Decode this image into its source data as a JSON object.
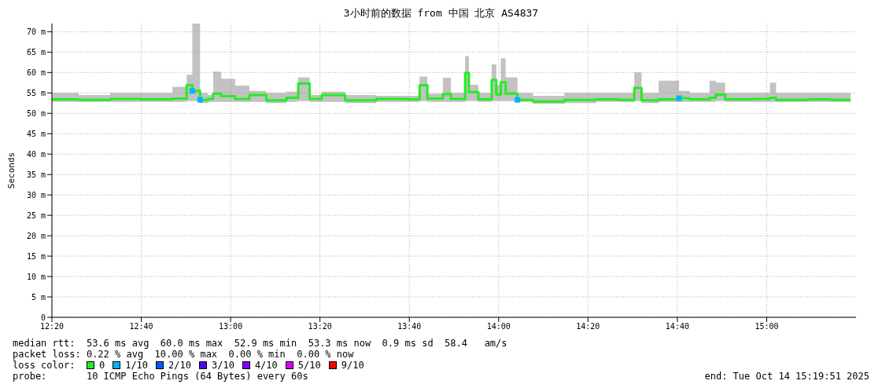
{
  "chart_data": {
    "type": "step",
    "title": "3小时前的数据 from 中国 北京 AS4837",
    "ylabel": "Seconds",
    "legend_title": "loss color:",
    "x": [
      12.3333,
      12.433,
      12.55,
      12.667,
      12.783,
      12.836,
      12.857,
      12.886,
      12.915,
      12.935,
      12.965,
      13.017,
      13.07,
      13.133,
      13.208,
      13.252,
      13.295,
      13.34,
      13.427,
      13.543,
      13.66,
      13.705,
      13.734,
      13.792,
      13.822,
      13.875,
      13.889,
      13.924,
      13.974,
      13.991,
      14.008,
      14.026,
      14.07,
      14.128,
      14.245,
      14.363,
      14.45,
      14.506,
      14.533,
      14.597,
      14.673,
      14.713,
      14.787,
      14.81,
      14.845,
      14.947,
      15.012,
      15.035,
      15.152,
      15.24,
      15.313
    ],
    "series": [
      {
        "name": "0",
        "color": "#22ee22",
        "values": [
          53.4,
          53.3,
          53.5,
          53.4,
          53.6,
          56.9,
          55.5,
          53.3,
          53.5,
          54.8,
          54.2,
          53.5,
          54.5,
          53.2,
          53.8,
          57.3,
          53.5,
          54.5,
          53.2,
          53.5,
          53.4,
          56.9,
          53.6,
          54.7,
          53.5,
          59.9,
          55.2,
          53.4,
          58.2,
          54.6,
          57.6,
          54.8,
          53.3,
          52.9,
          53.3,
          53.4,
          53.3,
          56.2,
          53.2,
          53.4,
          53.7,
          53.4,
          53.8,
          54.6,
          53.4,
          53.5,
          53.8,
          53.3,
          53.4,
          53.3,
          53.3
        ],
        "lower": [
          52.8,
          52.8,
          52.8,
          52.8,
          52.8,
          53,
          53,
          52.5,
          52.8,
          52.8,
          52.8,
          52.8,
          52.8,
          52.5,
          52.8,
          53,
          52.8,
          52.8,
          52.5,
          52.8,
          52.8,
          53,
          52.8,
          52.8,
          52.8,
          53,
          53,
          52.8,
          53,
          53,
          53,
          53,
          52.8,
          52.3,
          52.5,
          52.8,
          52.8,
          53,
          52.5,
          52.8,
          52.8,
          52.8,
          52.8,
          53,
          52.8,
          52.8,
          52.8,
          52.8,
          52.8,
          52.8,
          52.8
        ],
        "upper": [
          55,
          54.5,
          55,
          55,
          56.5,
          59.5,
          72,
          55,
          54.5,
          60.2,
          58.5,
          56.8,
          55.5,
          55,
          55.3,
          58.8,
          54.5,
          55.3,
          54.5,
          54.3,
          54.3,
          59,
          54.8,
          58.7,
          55,
          64,
          57,
          55,
          62,
          57,
          63.5,
          58.8,
          55,
          54.3,
          55,
          55,
          55,
          60,
          55,
          58,
          55.5,
          55,
          58,
          57.5,
          55,
          55,
          57.5,
          55,
          55,
          55,
          54.5
        ]
      },
      {
        "name": "1/10",
        "type": "scatter",
        "marker": "square",
        "color": "#00b4ff",
        "values": [
          null,
          null,
          null,
          null,
          null,
          null,
          55.5,
          53.3,
          null,
          null,
          null,
          null,
          null,
          null,
          null,
          null,
          null,
          null,
          null,
          null,
          null,
          null,
          null,
          null,
          null,
          null,
          null,
          null,
          null,
          null,
          null,
          null,
          53.3,
          null,
          null,
          null,
          null,
          null,
          null,
          null,
          53.7,
          null,
          null,
          null,
          null,
          null,
          null,
          null,
          null,
          null,
          null
        ]
      },
      {
        "name": "2/10",
        "type": "scatter",
        "color": "#0059ff",
        "values": [
          null,
          null,
          null,
          null,
          null,
          null,
          null,
          null,
          null,
          null,
          null,
          null,
          null,
          null,
          null,
          null,
          null,
          null,
          null,
          null,
          null,
          null,
          null,
          null,
          null,
          null,
          null,
          null,
          null,
          null,
          null,
          null,
          null,
          null,
          null,
          null,
          null,
          null,
          null,
          null,
          null,
          null,
          null,
          null,
          null,
          null,
          null,
          null,
          null,
          null,
          null
        ]
      },
      {
        "name": "3/10",
        "type": "scatter",
        "color": "#5500ff",
        "values": [
          null,
          null,
          null,
          null,
          null,
          null,
          null,
          null,
          null,
          null,
          null,
          null,
          null,
          null,
          null,
          null,
          null,
          null,
          null,
          null,
          null,
          null,
          null,
          null,
          null,
          null,
          null,
          null,
          null,
          null,
          null,
          null,
          null,
          null,
          null,
          null,
          null,
          null,
          null,
          null,
          null,
          null,
          null,
          null,
          null,
          null,
          null,
          null,
          null,
          null,
          null
        ]
      },
      {
        "name": "4/10",
        "type": "scatter",
        "color": "#7e00ff",
        "values": [
          null,
          null,
          null,
          null,
          null,
          null,
          null,
          null,
          null,
          null,
          null,
          null,
          null,
          null,
          null,
          null,
          null,
          null,
          null,
          null,
          null,
          null,
          null,
          null,
          null,
          null,
          null,
          null,
          null,
          null,
          null,
          null,
          null,
          null,
          null,
          null,
          null,
          null,
          null,
          null,
          null,
          null,
          null,
          null,
          null,
          null,
          null,
          null,
          null,
          null,
          null
        ]
      },
      {
        "name": "5/10",
        "type": "scatter",
        "color": "#dd00ff",
        "values": [
          null,
          null,
          null,
          null,
          null,
          null,
          null,
          null,
          null,
          null,
          null,
          null,
          null,
          null,
          null,
          null,
          null,
          null,
          null,
          null,
          null,
          null,
          null,
          null,
          null,
          null,
          null,
          null,
          null,
          null,
          null,
          null,
          null,
          null,
          null,
          null,
          null,
          null,
          null,
          null,
          null,
          null,
          null,
          null,
          null,
          null,
          null,
          null,
          null,
          null,
          null
        ]
      },
      {
        "name": "9/10",
        "type": "scatter",
        "color": "#ff0000",
        "values": [
          null,
          null,
          null,
          null,
          null,
          null,
          null,
          null,
          null,
          null,
          null,
          null,
          null,
          null,
          null,
          null,
          null,
          null,
          null,
          null,
          null,
          null,
          null,
          null,
          null,
          null,
          null,
          null,
          null,
          null,
          null,
          null,
          null,
          null,
          null,
          null,
          null,
          null,
          null,
          null,
          null,
          null,
          null,
          null,
          null,
          null,
          null,
          null,
          null,
          null,
          null
        ]
      }
    ],
    "xlim": [
      12.3333,
      15.3333
    ],
    "xticks": [
      {
        "value": 12.3333,
        "label": "12:20"
      },
      {
        "value": 12.6667,
        "label": "12:40"
      },
      {
        "value": 13,
        "label": "13:00"
      },
      {
        "value": 13.3333,
        "label": "13:20"
      },
      {
        "value": 13.6667,
        "label": "13:40"
      },
      {
        "value": 14,
        "label": "14:00"
      },
      {
        "value": 14.3333,
        "label": "14:20"
      },
      {
        "value": 14.6667,
        "label": "14:40"
      },
      {
        "value": 15,
        "label": "15:00"
      }
    ],
    "ylim": [
      0,
      72
    ],
    "yticks": [
      0,
      {
        "value": 5,
        "label": "5 m"
      },
      {
        "value": 10,
        "label": "10 m"
      },
      {
        "value": 15,
        "label": "15 m"
      },
      {
        "value": 20,
        "label": "20 m"
      },
      {
        "value": 25,
        "label": "25 m"
      },
      {
        "value": 30,
        "label": "30 m"
      },
      {
        "value": 35,
        "label": "35 m"
      },
      {
        "value": 40,
        "label": "40 m"
      },
      {
        "value": 45,
        "label": "45 m"
      },
      {
        "value": 50,
        "label": "50 m"
      },
      {
        "value": 55,
        "label": "55 m"
      },
      {
        "value": 60,
        "label": "60 m"
      },
      {
        "value": 65,
        "label": "65 m"
      },
      {
        "value": 70,
        "label": "70 m"
      }
    ],
    "grid": true,
    "legend": "bottom",
    "annotations": [
      "median rtt:  53.6 ms avg  60.0 ms max  52.9 ms min  53.3 ms now  0.9 ms sd  58.4   am/s",
      "packet loss: 0.22 % avg  10.00 % max  0.00 % min  0.00 % now",
      "probe:       10 ICMP Echo Pings (64 Bytes) every 60s",
      "end: Tue Oct 14 15:19:51 2025"
    ]
  }
}
